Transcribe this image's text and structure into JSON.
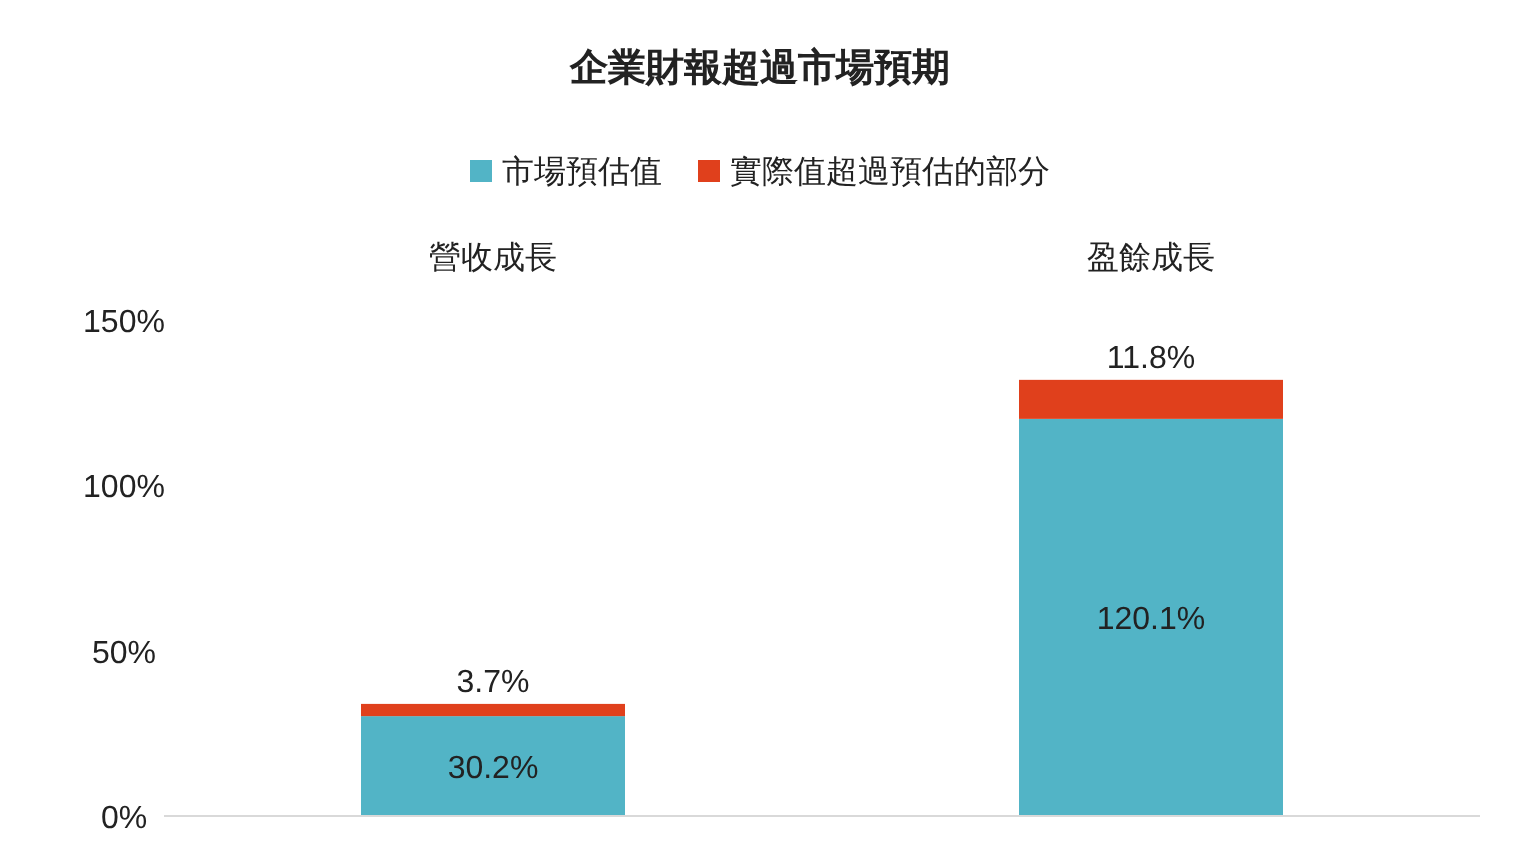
{
  "chart_data": {
    "type": "bar",
    "title": "企業財報超過市場預期",
    "stacked": true,
    "categories": [
      "營收成長",
      "盈餘成長"
    ],
    "series": [
      {
        "name": "市場預估值",
        "color": "#52b4c6",
        "values": [
          30.2,
          120.1
        ],
        "value_labels": [
          "30.2%",
          "120.1%"
        ]
      },
      {
        "name": "實際值超過預估的部分",
        "color": "#e0401c",
        "values": [
          3.7,
          11.8
        ],
        "value_labels": [
          "3.7%",
          "11.8%"
        ]
      }
    ],
    "ylim": [
      0,
      150
    ],
    "yticks": [
      {
        "value": 0,
        "label": "0%"
      },
      {
        "value": 50,
        "label": "50%"
      },
      {
        "value": 100,
        "label": "100%"
      },
      {
        "value": 150,
        "label": "150%"
      }
    ],
    "grid": false,
    "legend": "top"
  }
}
